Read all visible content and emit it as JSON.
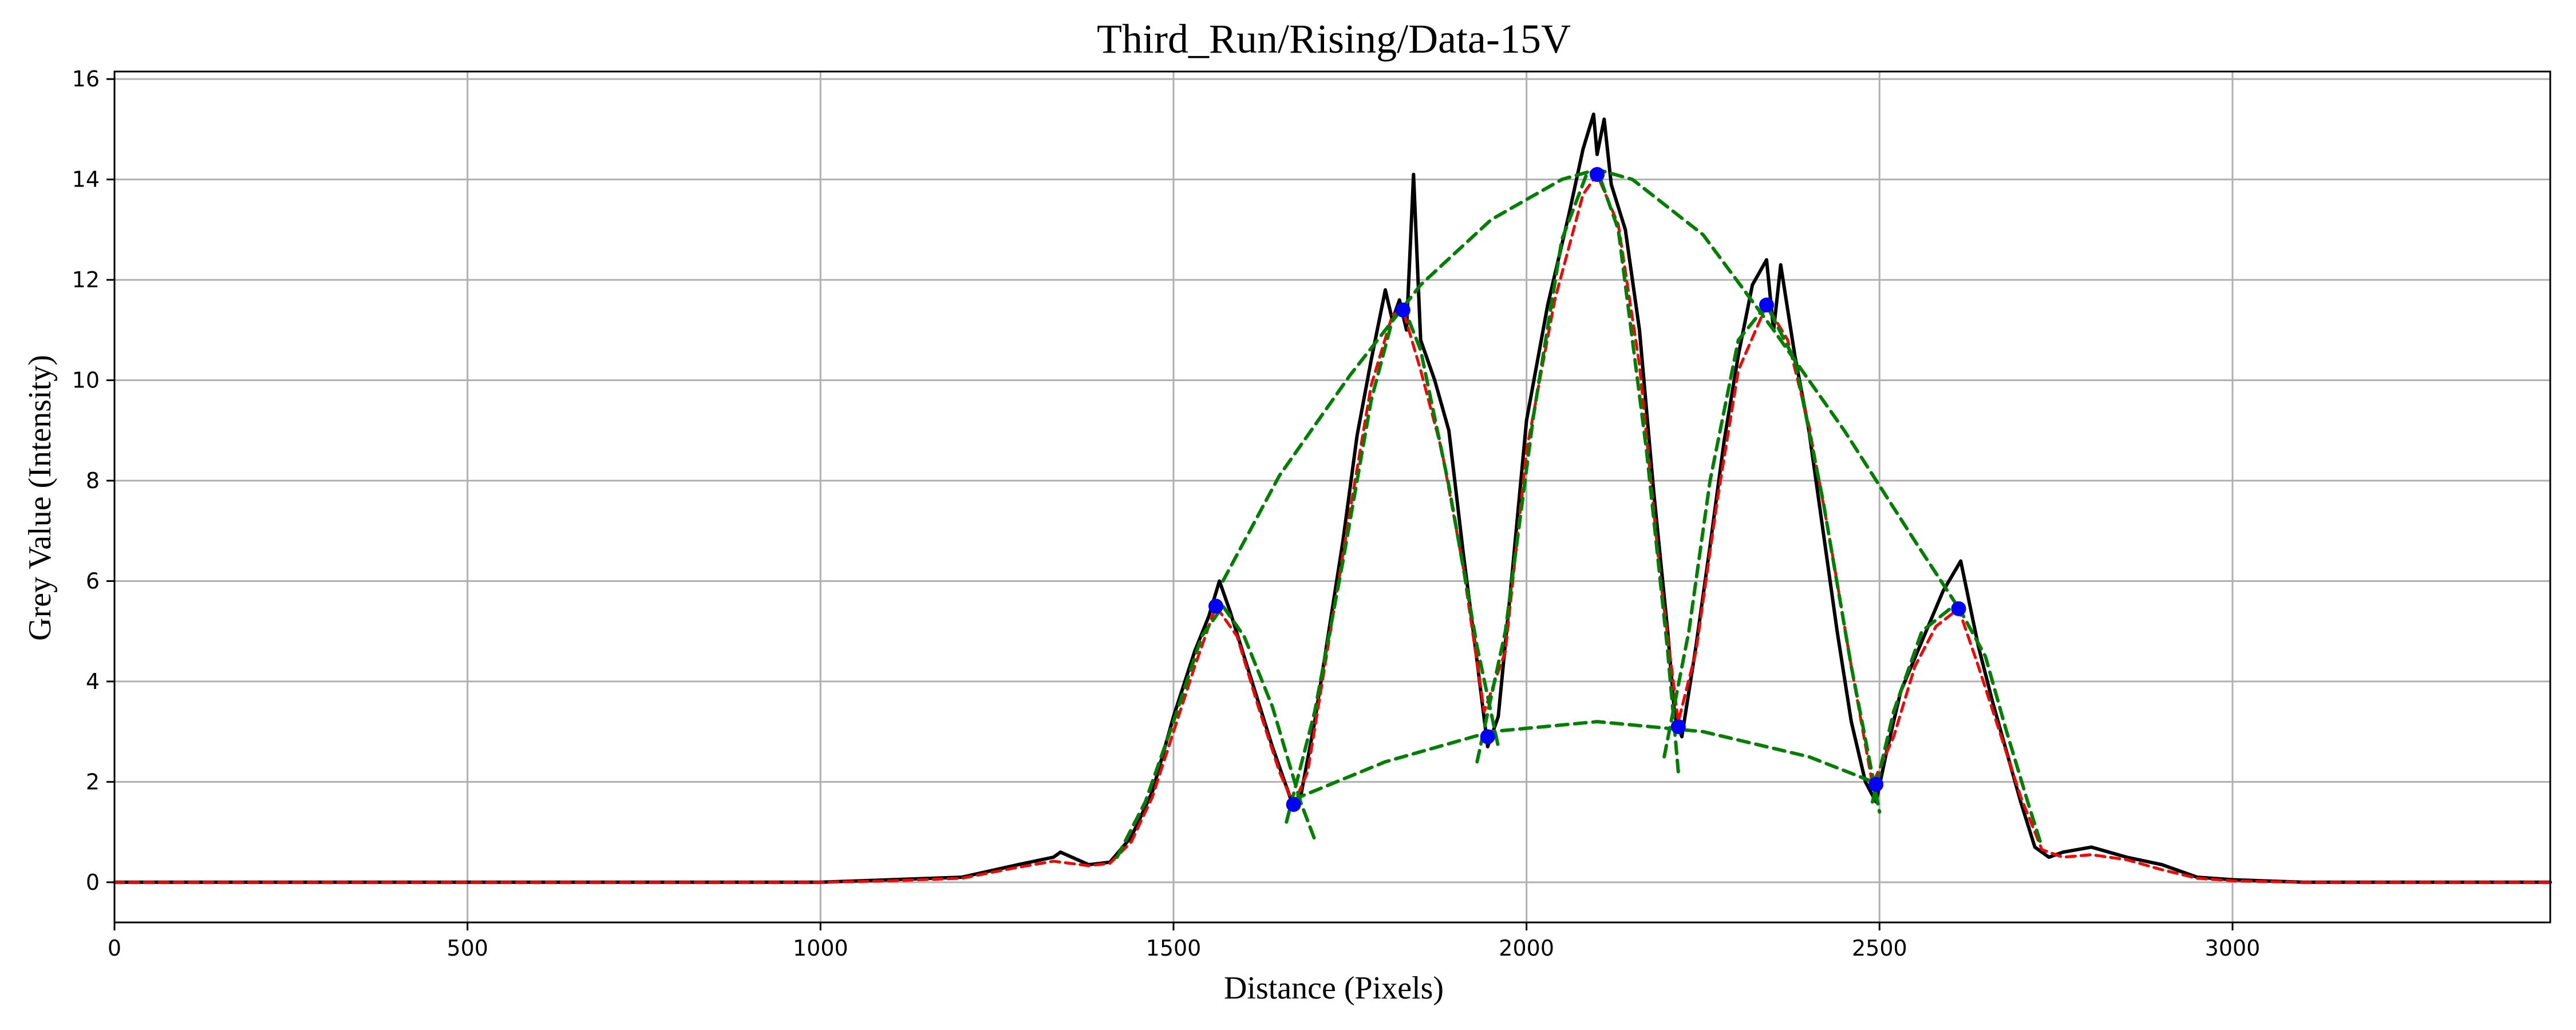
{
  "chart_data": {
    "type": "line",
    "title": "Third_Run/Rising/Data-15V",
    "xlabel": "Distance (Pixels)",
    "ylabel": "Grey Value (Intensity)",
    "xlim": [
      0,
      3450
    ],
    "ylim": [
      -0.8,
      16.15
    ],
    "xticks": [
      0,
      500,
      1000,
      1500,
      2000,
      2500,
      3000
    ],
    "yticks": [
      0,
      2,
      4,
      6,
      8,
      10,
      12,
      14,
      16
    ],
    "grid": true,
    "legend": "none",
    "colors": {
      "raw": "#000000",
      "smoothed": "#ff0000",
      "envelope": "#008000",
      "peaks": "#0000ff"
    },
    "series": [
      {
        "role": "raw-profile",
        "x": [
          0,
          1000,
          1100,
          1200,
          1280,
          1330,
          1340,
          1380,
          1410,
          1440,
          1470,
          1500,
          1530,
          1550,
          1565,
          1580,
          1600,
          1620,
          1640,
          1660,
          1670,
          1680,
          1700,
          1720,
          1740,
          1760,
          1780,
          1800,
          1810,
          1820,
          1830,
          1840,
          1850,
          1870,
          1890,
          1910,
          1930,
          1945,
          1960,
          1980,
          2000,
          2030,
          2060,
          2080,
          2095,
          2100,
          2110,
          2120,
          2140,
          2160,
          2180,
          2200,
          2210,
          2220,
          2240,
          2260,
          2280,
          2300,
          2320,
          2340,
          2350,
          2360,
          2380,
          2400,
          2420,
          2440,
          2460,
          2480,
          2495,
          2510,
          2530,
          2560,
          2590,
          2615,
          2640,
          2660,
          2680,
          2700,
          2720,
          2740,
          2760,
          2800,
          2850,
          2900,
          2950,
          3000,
          3100,
          3450
        ],
        "y": [
          0,
          0,
          0.05,
          0.1,
          0.35,
          0.5,
          0.6,
          0.35,
          0.4,
          0.9,
          1.8,
          3.3,
          4.6,
          5.3,
          6.0,
          5.4,
          4.5,
          3.6,
          2.7,
          1.9,
          1.5,
          1.7,
          3.2,
          5.0,
          6.8,
          8.9,
          10.4,
          11.8,
          11.2,
          11.6,
          11.0,
          14.1,
          10.8,
          10.0,
          9.0,
          6.6,
          4.4,
          2.7,
          3.3,
          6.2,
          9.2,
          11.5,
          13.3,
          14.6,
          15.3,
          14.5,
          15.2,
          13.9,
          13.0,
          11.0,
          7.8,
          5.0,
          3.3,
          2.9,
          4.7,
          6.7,
          8.8,
          10.5,
          11.9,
          12.4,
          11.0,
          12.3,
          10.5,
          9.0,
          7.0,
          5.0,
          3.2,
          2.0,
          1.6,
          2.6,
          3.8,
          4.8,
          5.8,
          6.4,
          4.7,
          3.6,
          2.6,
          1.6,
          0.7,
          0.5,
          0.6,
          0.7,
          0.5,
          0.35,
          0.1,
          0.05,
          0,
          0
        ]
      },
      {
        "role": "smoothed-profile",
        "x": [
          0,
          1000,
          1100,
          1200,
          1280,
          1330,
          1380,
          1410,
          1440,
          1470,
          1500,
          1530,
          1560,
          1590,
          1620,
          1650,
          1670,
          1690,
          1720,
          1750,
          1780,
          1810,
          1825,
          1850,
          1880,
          1910,
          1940,
          1970,
          2000,
          2040,
          2080,
          2100,
          2130,
          2160,
          2190,
          2215,
          2240,
          2270,
          2300,
          2340,
          2370,
          2400,
          2430,
          2460,
          2490,
          2520,
          2550,
          2580,
          2612,
          2640,
          2670,
          2700,
          2730,
          2760,
          2800,
          2850,
          2900,
          2950,
          3000,
          3100,
          3450
        ],
        "y": [
          0,
          0,
          0.03,
          0.08,
          0.3,
          0.42,
          0.33,
          0.38,
          0.8,
          1.7,
          3.0,
          4.3,
          5.5,
          4.9,
          3.5,
          2.2,
          1.55,
          2.2,
          4.8,
          7.4,
          9.9,
          11.3,
          11.4,
          10.2,
          8.6,
          6.3,
          3.4,
          4.6,
          8.6,
          11.6,
          13.7,
          14.1,
          13.1,
          10.3,
          6.0,
          3.2,
          4.6,
          7.6,
          10.2,
          11.5,
          10.8,
          9.1,
          6.8,
          4.3,
          1.95,
          2.9,
          4.3,
          5.1,
          5.45,
          4.3,
          3.0,
          1.7,
          0.65,
          0.5,
          0.55,
          0.45,
          0.25,
          0.08,
          0.03,
          0,
          0
        ]
      },
      {
        "role": "upper-envelope-fit",
        "x": [
          1570,
          1650,
          1750,
          1850,
          1950,
          2050,
          2100,
          2150,
          2250,
          2350,
          2450,
          2550,
          2615
        ],
        "y": [
          6.0,
          8.1,
          10.1,
          11.9,
          13.2,
          14.0,
          14.2,
          14.0,
          12.9,
          11.0,
          9.0,
          6.8,
          5.4
        ]
      },
      {
        "role": "lower-envelope-fit",
        "x": [
          1670,
          1800,
          1950,
          2100,
          2250,
          2400,
          2500
        ],
        "y": [
          1.65,
          2.4,
          3.0,
          3.2,
          3.0,
          2.5,
          1.95
        ]
      },
      {
        "role": "left-side-fit",
        "x": [
          1420,
          1460,
          1500,
          1540,
          1570,
          1600,
          1640,
          1680,
          1700
        ],
        "y": [
          0.5,
          1.6,
          3.2,
          4.9,
          5.5,
          4.9,
          3.5,
          1.6,
          0.85
        ]
      },
      {
        "role": "peak-1-fit",
        "x": [
          1660,
          1700,
          1740,
          1780,
          1810,
          1825,
          1850,
          1890,
          1930,
          1960
        ],
        "y": [
          1.2,
          3.4,
          6.4,
          9.6,
          11.2,
          11.5,
          10.6,
          7.9,
          4.7,
          2.7
        ]
      },
      {
        "role": "peak-2-fit",
        "x": [
          1930,
          1970,
          2010,
          2050,
          2085,
          2100,
          2130,
          2170,
          2200,
          2215
        ],
        "y": [
          2.4,
          5.0,
          9.3,
          12.8,
          14.1,
          14.2,
          13.0,
          8.6,
          4.6,
          2.2
        ]
      },
      {
        "role": "peak-3-fit",
        "x": [
          2195,
          2230,
          2260,
          2300,
          2340,
          2380,
          2420,
          2460,
          2500
        ],
        "y": [
          2.5,
          5.0,
          8.0,
          10.8,
          11.5,
          10.4,
          7.6,
          4.3,
          1.4
        ]
      },
      {
        "role": "peak-4-fit",
        "x": [
          2490,
          2520,
          2560,
          2600,
          2615,
          2650,
          2680,
          2710,
          2730
        ],
        "y": [
          1.6,
          3.4,
          5.0,
          5.45,
          5.4,
          4.5,
          3.0,
          1.6,
          0.7
        ]
      }
    ],
    "markers": {
      "x": [
        1560,
        1670,
        1825,
        1945,
        2100,
        2215,
        2340,
        2495,
        2612
      ],
      "y": [
        5.5,
        1.55,
        11.4,
        2.9,
        14.1,
        3.1,
        11.5,
        1.95,
        5.45
      ]
    }
  }
}
